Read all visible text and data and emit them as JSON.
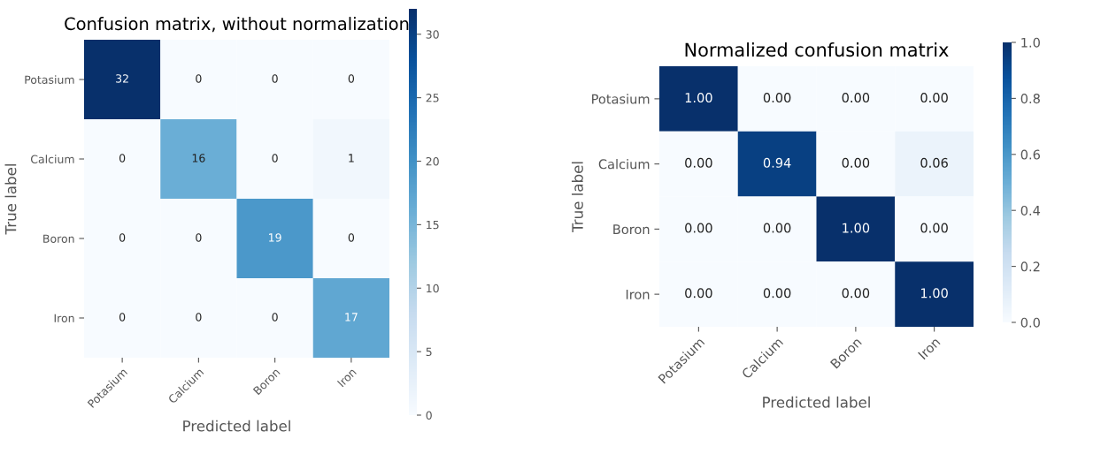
{
  "chart_data": [
    {
      "type": "heatmap",
      "title": "Confusion matrix, without normalization",
      "xlabel": "Predicted label",
      "ylabel": "True label",
      "categories": [
        "Potasium",
        "Calcium",
        "Boron",
        "Iron"
      ],
      "y_categories": [
        "Potasium",
        "Calcium",
        "Boron",
        "Iron"
      ],
      "cells": [
        [
          32,
          0,
          0,
          0
        ],
        [
          0,
          16,
          0,
          1
        ],
        [
          0,
          0,
          19,
          0
        ],
        [
          0,
          0,
          0,
          17
        ]
      ],
      "data_labels": true,
      "clim": [
        0,
        32
      ],
      "cticks": [
        0,
        5,
        10,
        15,
        20,
        25,
        30
      ]
    },
    {
      "type": "heatmap",
      "title": "Normalized confusion matrix",
      "xlabel": "Predicted label",
      "ylabel": "True label",
      "categories": [
        "Potasium",
        "Calcium",
        "Boron",
        "Iron"
      ],
      "y_categories": [
        "Potasium",
        "Calcium",
        "Boron",
        "Iron"
      ],
      "cells": [
        [
          1.0,
          0.0,
          0.0,
          0.0
        ],
        [
          0.0,
          0.94,
          0.0,
          0.06
        ],
        [
          0.0,
          0.0,
          1.0,
          0.0
        ],
        [
          0.0,
          0.0,
          0.0,
          1.0
        ]
      ],
      "cell_labels": [
        [
          "1.00",
          "0.00",
          "0.00",
          "0.00"
        ],
        [
          "0.00",
          "0.94",
          "0.00",
          "0.06"
        ],
        [
          "0.00",
          "0.00",
          "1.00",
          "0.00"
        ],
        [
          "0.00",
          "0.00",
          "0.00",
          "1.00"
        ]
      ],
      "clim": [
        0,
        1
      ],
      "cticks": [
        {
          "value": 0,
          "label": "0.0"
        },
        {
          "value": 0.2,
          "label": "0.2"
        },
        {
          "value": 0.4,
          "label": "0.4"
        },
        {
          "value": 0.6,
          "label": "0.6"
        },
        {
          "value": 0.8,
          "label": "0.8"
        },
        {
          "value": 1,
          "label": "1.0"
        }
      ]
    }
  ]
}
